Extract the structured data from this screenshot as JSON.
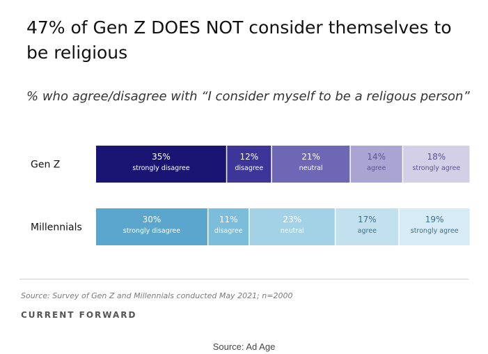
{
  "chart_data": {
    "type": "bar",
    "stacked": true,
    "orientation": "horizontal",
    "title": "47% of Gen Z DOES NOT consider themselves to be religious",
    "subtitle": "% who agree/disagree with “I consider myself to be a religous person”",
    "categories": [
      "Gen Z",
      "Millennials"
    ],
    "series": [
      {
        "name": "strongly disagree",
        "values": [
          35,
          30
        ],
        "colors": [
          "#1a1573",
          "#5aa6cc"
        ]
      },
      {
        "name": "disagree",
        "values": [
          12,
          11
        ],
        "colors": [
          "#3d3597",
          "#7bbddb"
        ]
      },
      {
        "name": "neutral",
        "values": [
          21,
          23
        ],
        "colors": [
          "#6e67b5",
          "#a3d1e6"
        ]
      },
      {
        "name": "agree",
        "values": [
          14,
          17
        ],
        "colors": [
          "#a9a4d2",
          "#c2e0ee"
        ]
      },
      {
        "name": "strongly agree",
        "values": [
          18,
          19
        ],
        "colors": [
          "#d2cfe6",
          "#d6ebf5"
        ]
      }
    ],
    "xlim": [
      0,
      100
    ],
    "legend": "none",
    "grid": false
  },
  "footer": {
    "source_note": "Source: Survey of Gen Z and Millennials conducted May 2021; n=2000",
    "brand": "CURRENT FORWARD",
    "credit": "Source: Ad Age"
  }
}
